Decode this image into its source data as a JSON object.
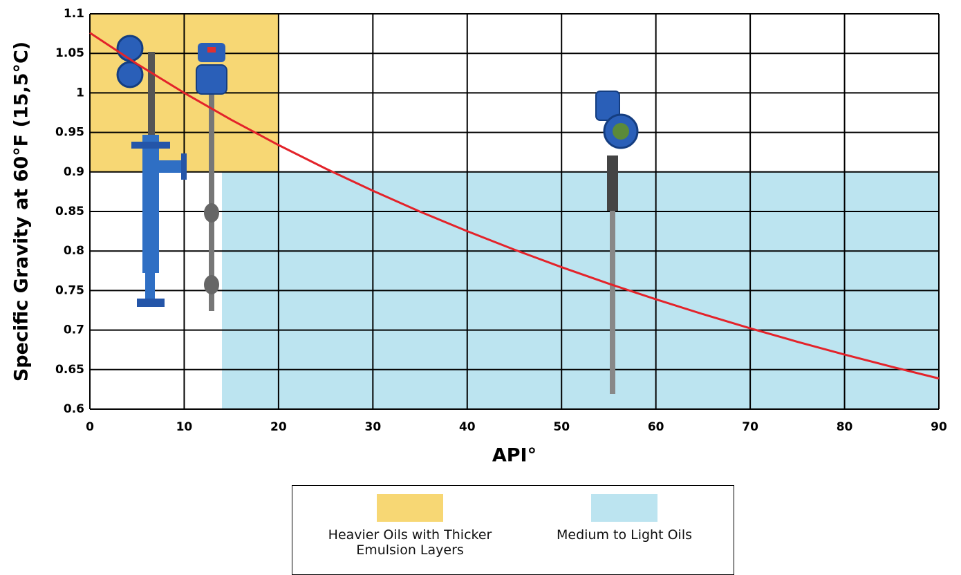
{
  "chart_data": {
    "type": "line",
    "xlabel": "API°",
    "ylabel": "Specific Gravity at 60°F (15,5°C)",
    "x": [
      0,
      5,
      10,
      15,
      20,
      25,
      30,
      35,
      40,
      45,
      50,
      55,
      60,
      65,
      70,
      75,
      80,
      85,
      90
    ],
    "series": [
      {
        "color": "#e3232a",
        "values": [
          1.076,
          1.0366,
          1.0,
          0.9659,
          0.934,
          0.9042,
          0.8762,
          0.8498,
          0.8251,
          0.8017,
          0.7796,
          0.7587,
          0.7389,
          0.7201,
          0.7022,
          0.6852,
          0.669,
          0.6536,
          0.6388
        ]
      }
    ],
    "xlim": [
      0,
      90
    ],
    "ylim": [
      0.6,
      1.1
    ],
    "xticks": [
      0,
      10,
      20,
      30,
      40,
      50,
      60,
      70,
      80,
      90
    ],
    "yticks": [
      0.6,
      0.65,
      0.7,
      0.75,
      0.8,
      0.85,
      0.9,
      0.95,
      1,
      1.05,
      1.1
    ],
    "grid": true,
    "regions": [
      {
        "name": "Heavier Oils with Thicker Emulsion Layers",
        "color": "#f7d774",
        "xrange": [
          0,
          20
        ],
        "yrange": [
          0.9,
          1.1
        ]
      },
      {
        "name": "Medium to Light Oils",
        "color": "#bce4f0",
        "xrange": [
          14,
          90
        ],
        "yrange": [
          0.6,
          0.9
        ]
      }
    ]
  }
}
